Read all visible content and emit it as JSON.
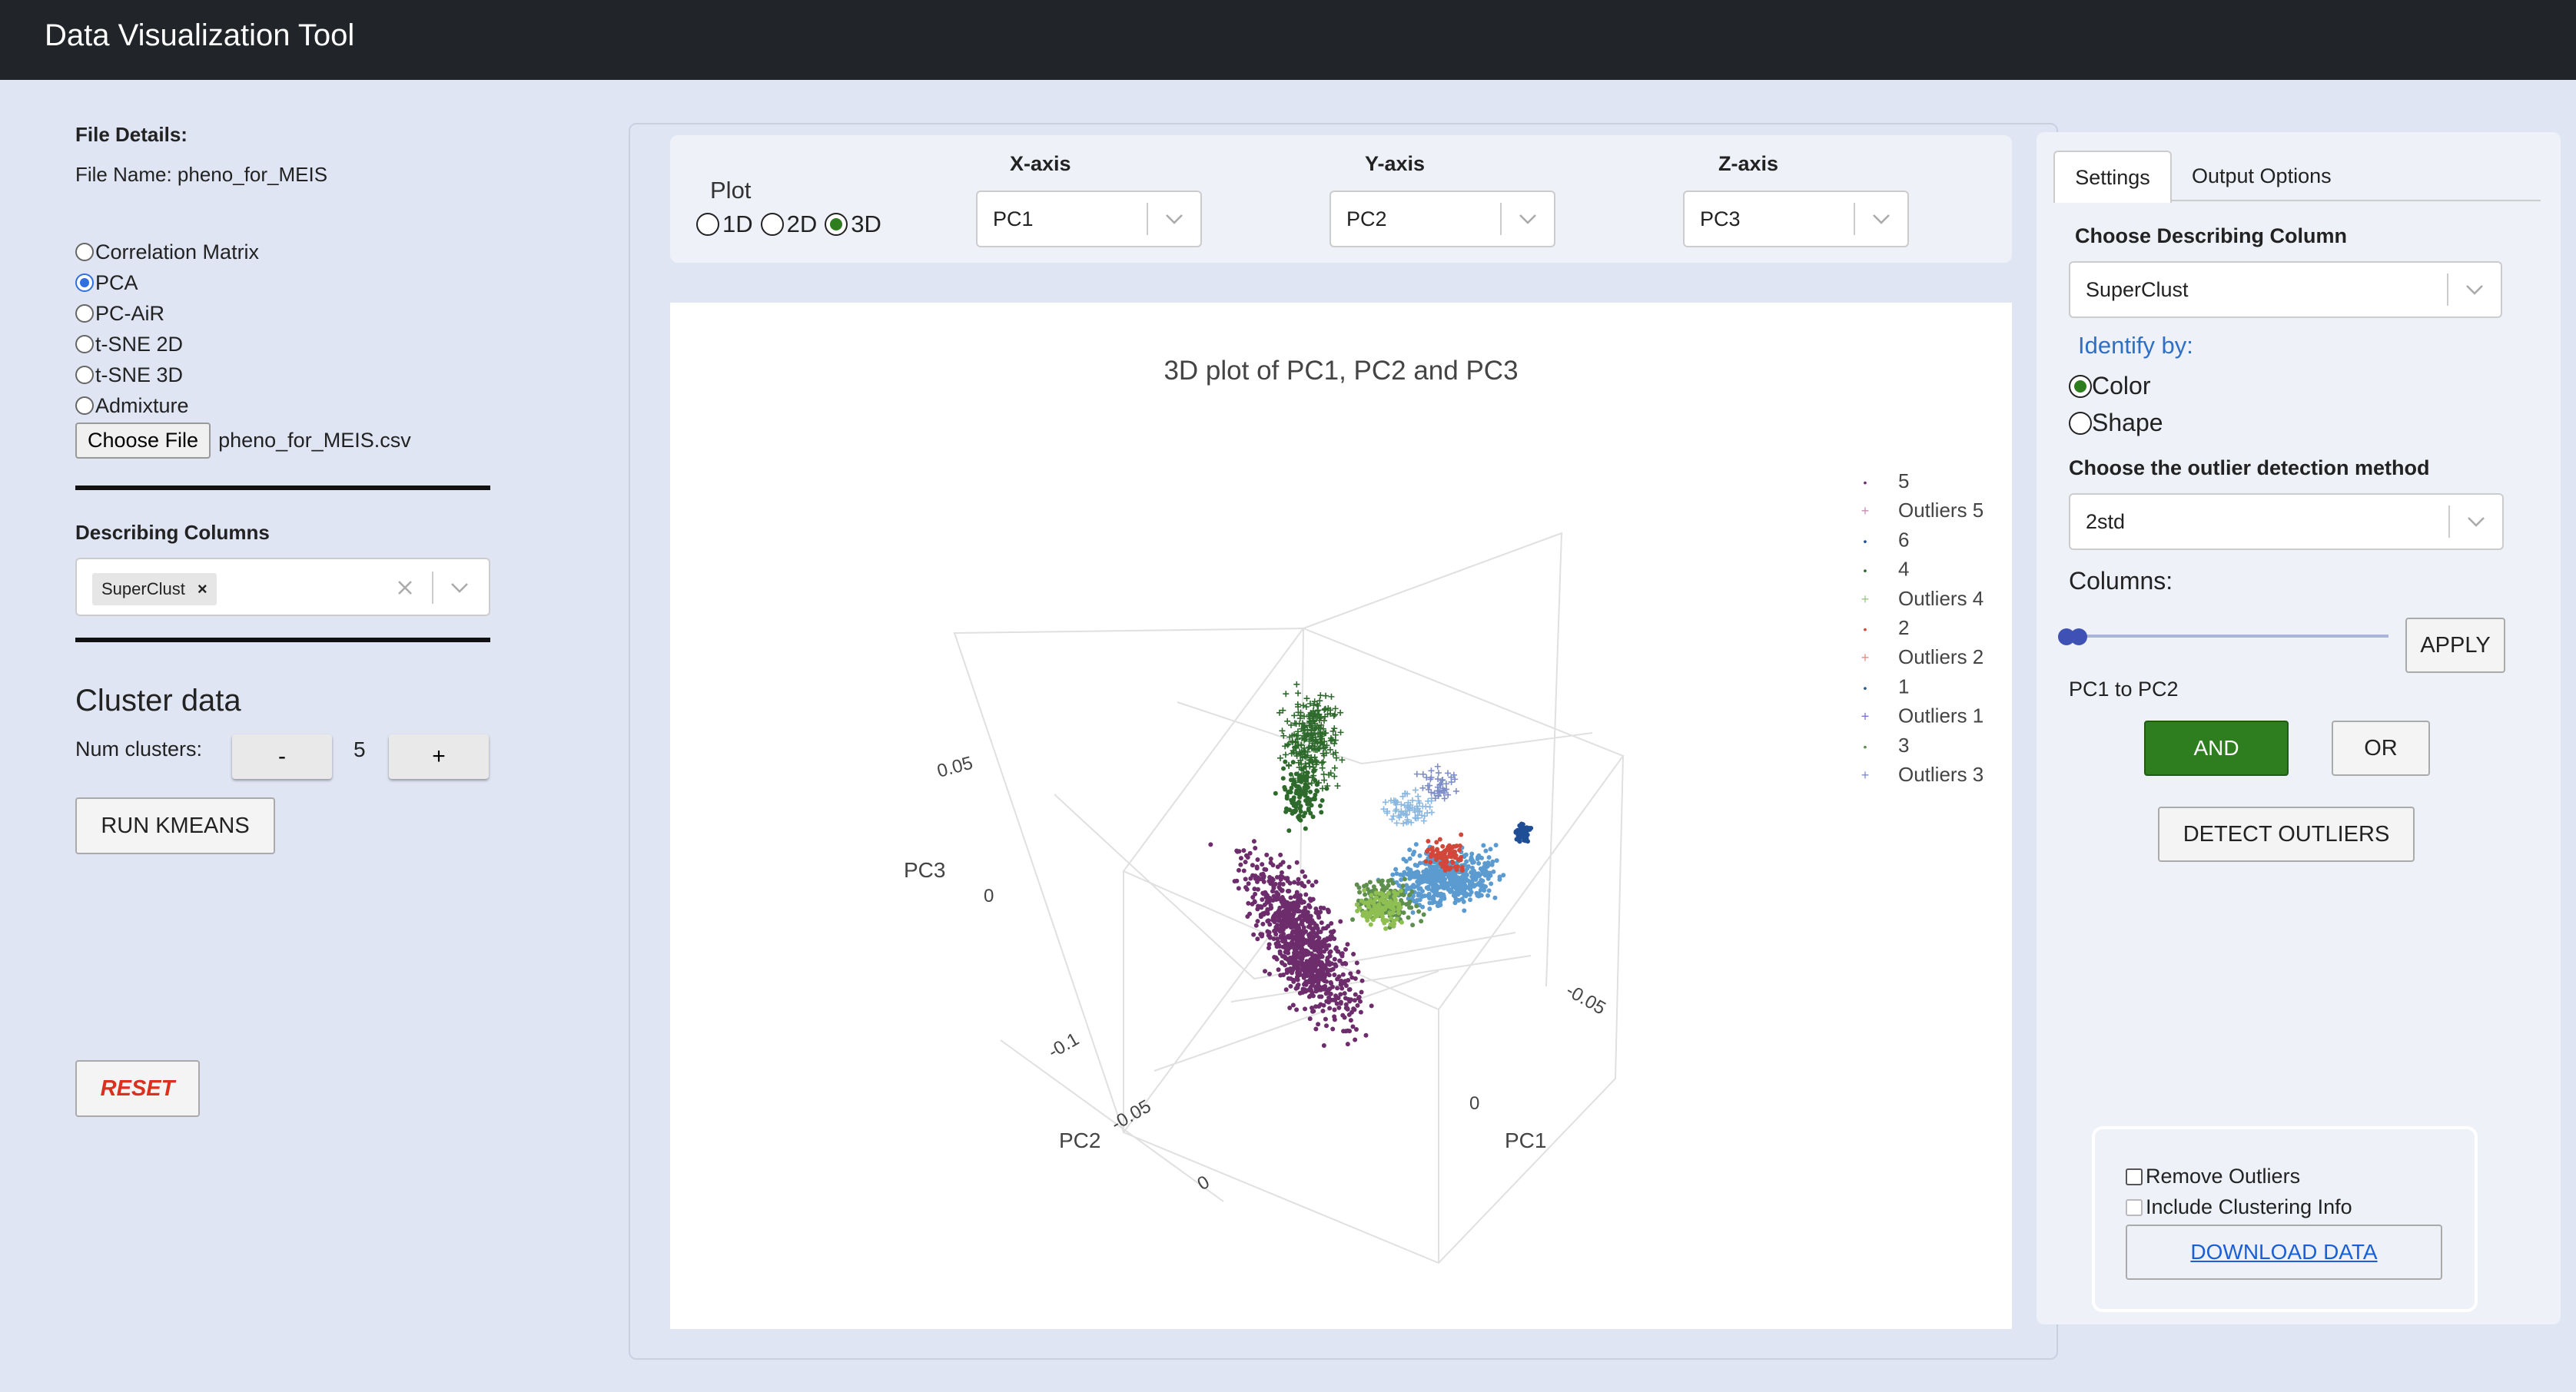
{
  "app_title": "Data Visualization Tool",
  "file": {
    "details_label": "File Details:",
    "name_line": "File Name: pheno_for_MEIS",
    "choose_label": "Choose File",
    "chosen_name": "pheno_for_MEIS.csv"
  },
  "analysis_options": [
    {
      "label": "Correlation Matrix",
      "selected": false
    },
    {
      "label": "PCA",
      "selected": true
    },
    {
      "label": "PC-AiR",
      "selected": false
    },
    {
      "label": "t-SNE 2D",
      "selected": false
    },
    {
      "label": "t-SNE 3D",
      "selected": false
    },
    {
      "label": "Admixture",
      "selected": false
    }
  ],
  "describing": {
    "label": "Describing Columns",
    "chip": "SuperClust",
    "chip_remove": "×"
  },
  "cluster": {
    "heading": "Cluster data",
    "num_label": "Num clusters:",
    "minus": "-",
    "value": "5",
    "plus": "+",
    "run_label": "RUN KMEANS"
  },
  "reset_label": "RESET",
  "plot_controls": {
    "plot_label": "Plot",
    "dims": [
      {
        "label": "1D",
        "selected": false
      },
      {
        "label": "2D",
        "selected": false
      },
      {
        "label": "3D",
        "selected": true
      }
    ],
    "x_label": "X-axis",
    "x_value": "PC1",
    "y_label": "Y-axis",
    "y_value": "PC2",
    "z_label": "Z-axis",
    "z_value": "PC3"
  },
  "chart_data": {
    "type": "scatter",
    "title": "3D plot of PC1, PC2 and PC3",
    "axes": {
      "x": {
        "label": "PC1",
        "ticks": [
          "-0.05",
          "0"
        ]
      },
      "y": {
        "label": "PC2",
        "ticks": [
          "-0.1",
          "-0.05",
          "0"
        ]
      },
      "z": {
        "label": "PC3",
        "ticks": [
          "0",
          "0.05"
        ]
      }
    },
    "legend": [
      {
        "name": "5",
        "color": "#6d2c6b",
        "marker": "dot"
      },
      {
        "name": "Outliers 5",
        "color": "#c58fb8",
        "marker": "cross"
      },
      {
        "name": "6",
        "color": "#1f4e96",
        "marker": "dot"
      },
      {
        "name": "4",
        "color": "#2e6a2c",
        "marker": "dot"
      },
      {
        "name": "Outliers 4",
        "color": "#9cc48a",
        "marker": "cross"
      },
      {
        "name": "2",
        "color": "#d1483a",
        "marker": "dot"
      },
      {
        "name": "Outliers 2",
        "color": "#e58a7e",
        "marker": "cross"
      },
      {
        "name": "1",
        "color": "#2b5a8a",
        "marker": "dot"
      },
      {
        "name": "Outliers 1",
        "color": "#7b74c9",
        "marker": "cross"
      },
      {
        "name": "3",
        "color": "#5e8f4e",
        "marker": "dot"
      },
      {
        "name": "Outliers 3",
        "color": "#7d8dc6",
        "marker": "cross"
      }
    ],
    "legend_placement": "top-right"
  },
  "settings": {
    "tab_settings": "Settings",
    "tab_output": "Output Options",
    "choose_col_label": "Choose Describing Column",
    "choose_col_value": "SuperClust",
    "identify_label": "Identify by:",
    "identify_opts": [
      {
        "label": "Color",
        "selected": true
      },
      {
        "label": "Shape",
        "selected": false
      }
    ],
    "outlier_label": "Choose the outlier detection method",
    "outlier_value": "2std",
    "columns_label": "Columns:",
    "apply_label": "APPLY",
    "range_text": "PC1 to PC2",
    "and_label": "AND",
    "or_label": "OR",
    "detect_label": "DETECT OUTLIERS"
  },
  "output": {
    "remove_outliers": "Remove Outliers",
    "include_clustering": "Include Clustering Info",
    "download_label": "DOWNLOAD DATA"
  },
  "colors": {
    "topbar": "#212529",
    "green": "#2e7d1e",
    "reset": "#d9301f",
    "link": "#1a5fd6",
    "identify": "#2f6fc4"
  }
}
